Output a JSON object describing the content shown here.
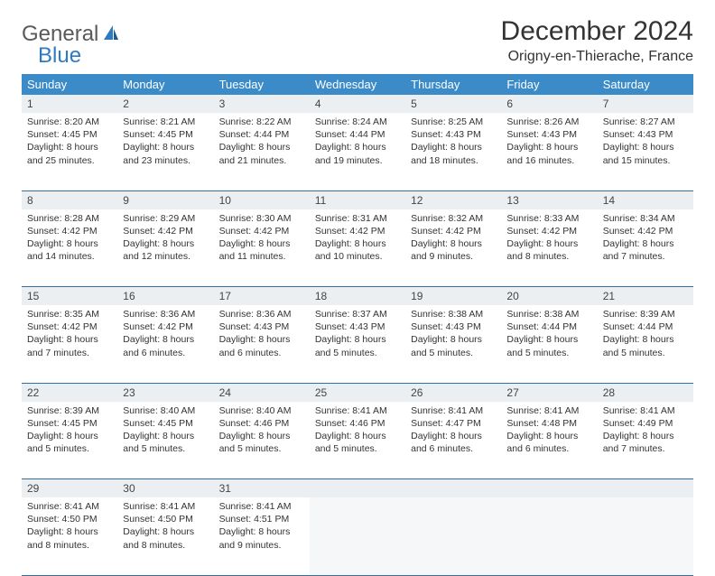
{
  "logo": {
    "part1": "General",
    "part2": "Blue"
  },
  "title": "December 2024",
  "location": "Origny-en-Thierache, France",
  "colors": {
    "header_bg": "#3b8bc8",
    "header_text": "#ffffff",
    "daynum_bg": "#eceff1",
    "border": "#2f6fa3",
    "logo_gray": "#5a5a5a",
    "logo_blue": "#2f7bbf"
  },
  "daysOfWeek": [
    "Sunday",
    "Monday",
    "Tuesday",
    "Wednesday",
    "Thursday",
    "Friday",
    "Saturday"
  ],
  "weeks": [
    [
      {
        "num": "1",
        "sunrise": "Sunrise: 8:20 AM",
        "sunset": "Sunset: 4:45 PM",
        "day1": "Daylight: 8 hours",
        "day2": "and 25 minutes."
      },
      {
        "num": "2",
        "sunrise": "Sunrise: 8:21 AM",
        "sunset": "Sunset: 4:45 PM",
        "day1": "Daylight: 8 hours",
        "day2": "and 23 minutes."
      },
      {
        "num": "3",
        "sunrise": "Sunrise: 8:22 AM",
        "sunset": "Sunset: 4:44 PM",
        "day1": "Daylight: 8 hours",
        "day2": "and 21 minutes."
      },
      {
        "num": "4",
        "sunrise": "Sunrise: 8:24 AM",
        "sunset": "Sunset: 4:44 PM",
        "day1": "Daylight: 8 hours",
        "day2": "and 19 minutes."
      },
      {
        "num": "5",
        "sunrise": "Sunrise: 8:25 AM",
        "sunset": "Sunset: 4:43 PM",
        "day1": "Daylight: 8 hours",
        "day2": "and 18 minutes."
      },
      {
        "num": "6",
        "sunrise": "Sunrise: 8:26 AM",
        "sunset": "Sunset: 4:43 PM",
        "day1": "Daylight: 8 hours",
        "day2": "and 16 minutes."
      },
      {
        "num": "7",
        "sunrise": "Sunrise: 8:27 AM",
        "sunset": "Sunset: 4:43 PM",
        "day1": "Daylight: 8 hours",
        "day2": "and 15 minutes."
      }
    ],
    [
      {
        "num": "8",
        "sunrise": "Sunrise: 8:28 AM",
        "sunset": "Sunset: 4:42 PM",
        "day1": "Daylight: 8 hours",
        "day2": "and 14 minutes."
      },
      {
        "num": "9",
        "sunrise": "Sunrise: 8:29 AM",
        "sunset": "Sunset: 4:42 PM",
        "day1": "Daylight: 8 hours",
        "day2": "and 12 minutes."
      },
      {
        "num": "10",
        "sunrise": "Sunrise: 8:30 AM",
        "sunset": "Sunset: 4:42 PM",
        "day1": "Daylight: 8 hours",
        "day2": "and 11 minutes."
      },
      {
        "num": "11",
        "sunrise": "Sunrise: 8:31 AM",
        "sunset": "Sunset: 4:42 PM",
        "day1": "Daylight: 8 hours",
        "day2": "and 10 minutes."
      },
      {
        "num": "12",
        "sunrise": "Sunrise: 8:32 AM",
        "sunset": "Sunset: 4:42 PM",
        "day1": "Daylight: 8 hours",
        "day2": "and 9 minutes."
      },
      {
        "num": "13",
        "sunrise": "Sunrise: 8:33 AM",
        "sunset": "Sunset: 4:42 PM",
        "day1": "Daylight: 8 hours",
        "day2": "and 8 minutes."
      },
      {
        "num": "14",
        "sunrise": "Sunrise: 8:34 AM",
        "sunset": "Sunset: 4:42 PM",
        "day1": "Daylight: 8 hours",
        "day2": "and 7 minutes."
      }
    ],
    [
      {
        "num": "15",
        "sunrise": "Sunrise: 8:35 AM",
        "sunset": "Sunset: 4:42 PM",
        "day1": "Daylight: 8 hours",
        "day2": "and 7 minutes."
      },
      {
        "num": "16",
        "sunrise": "Sunrise: 8:36 AM",
        "sunset": "Sunset: 4:42 PM",
        "day1": "Daylight: 8 hours",
        "day2": "and 6 minutes."
      },
      {
        "num": "17",
        "sunrise": "Sunrise: 8:36 AM",
        "sunset": "Sunset: 4:43 PM",
        "day1": "Daylight: 8 hours",
        "day2": "and 6 minutes."
      },
      {
        "num": "18",
        "sunrise": "Sunrise: 8:37 AM",
        "sunset": "Sunset: 4:43 PM",
        "day1": "Daylight: 8 hours",
        "day2": "and 5 minutes."
      },
      {
        "num": "19",
        "sunrise": "Sunrise: 8:38 AM",
        "sunset": "Sunset: 4:43 PM",
        "day1": "Daylight: 8 hours",
        "day2": "and 5 minutes."
      },
      {
        "num": "20",
        "sunrise": "Sunrise: 8:38 AM",
        "sunset": "Sunset: 4:44 PM",
        "day1": "Daylight: 8 hours",
        "day2": "and 5 minutes."
      },
      {
        "num": "21",
        "sunrise": "Sunrise: 8:39 AM",
        "sunset": "Sunset: 4:44 PM",
        "day1": "Daylight: 8 hours",
        "day2": "and 5 minutes."
      }
    ],
    [
      {
        "num": "22",
        "sunrise": "Sunrise: 8:39 AM",
        "sunset": "Sunset: 4:45 PM",
        "day1": "Daylight: 8 hours",
        "day2": "and 5 minutes."
      },
      {
        "num": "23",
        "sunrise": "Sunrise: 8:40 AM",
        "sunset": "Sunset: 4:45 PM",
        "day1": "Daylight: 8 hours",
        "day2": "and 5 minutes."
      },
      {
        "num": "24",
        "sunrise": "Sunrise: 8:40 AM",
        "sunset": "Sunset: 4:46 PM",
        "day1": "Daylight: 8 hours",
        "day2": "and 5 minutes."
      },
      {
        "num": "25",
        "sunrise": "Sunrise: 8:41 AM",
        "sunset": "Sunset: 4:46 PM",
        "day1": "Daylight: 8 hours",
        "day2": "and 5 minutes."
      },
      {
        "num": "26",
        "sunrise": "Sunrise: 8:41 AM",
        "sunset": "Sunset: 4:47 PM",
        "day1": "Daylight: 8 hours",
        "day2": "and 6 minutes."
      },
      {
        "num": "27",
        "sunrise": "Sunrise: 8:41 AM",
        "sunset": "Sunset: 4:48 PM",
        "day1": "Daylight: 8 hours",
        "day2": "and 6 minutes."
      },
      {
        "num": "28",
        "sunrise": "Sunrise: 8:41 AM",
        "sunset": "Sunset: 4:49 PM",
        "day1": "Daylight: 8 hours",
        "day2": "and 7 minutes."
      }
    ],
    [
      {
        "num": "29",
        "sunrise": "Sunrise: 8:41 AM",
        "sunset": "Sunset: 4:50 PM",
        "day1": "Daylight: 8 hours",
        "day2": "and 8 minutes."
      },
      {
        "num": "30",
        "sunrise": "Sunrise: 8:41 AM",
        "sunset": "Sunset: 4:50 PM",
        "day1": "Daylight: 8 hours",
        "day2": "and 8 minutes."
      },
      {
        "num": "31",
        "sunrise": "Sunrise: 8:41 AM",
        "sunset": "Sunset: 4:51 PM",
        "day1": "Daylight: 8 hours",
        "day2": "and 9 minutes."
      },
      null,
      null,
      null,
      null
    ]
  ]
}
